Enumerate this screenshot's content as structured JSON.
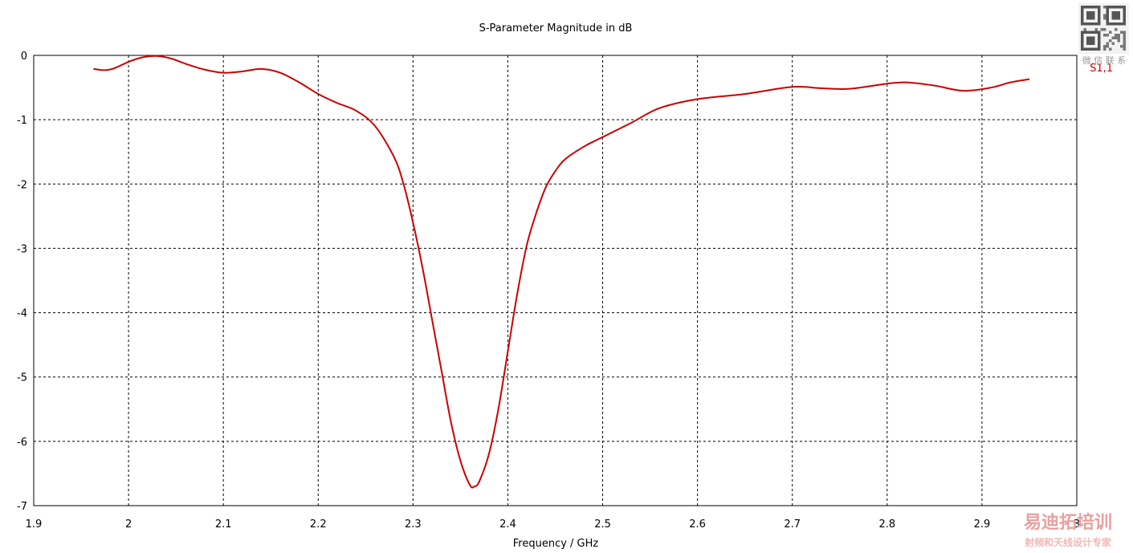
{
  "chart_data": {
    "type": "line",
    "title": "S-Parameter Magnitude in dB",
    "xlabel": "Frequency / GHz",
    "ylabel": "",
    "xlim": [
      1.9,
      3.0
    ],
    "ylim": [
      -7,
      0
    ],
    "xticks": [
      "1.9",
      "2",
      "2.1",
      "2.2",
      "2.3",
      "2.4",
      "2.5",
      "2.6",
      "2.7",
      "2.8",
      "2.9",
      "3"
    ],
    "yticks": [
      "0",
      "-1",
      "-2",
      "-3",
      "-4",
      "-5",
      "-6",
      "-7"
    ],
    "grid": true,
    "legend_position": "top-right",
    "series": [
      {
        "name": "S1,1",
        "color": "#cc0000",
        "x": [
          1.963,
          1.975,
          1.985,
          2.0,
          2.015,
          2.03,
          2.045,
          2.06,
          2.08,
          2.1,
          2.12,
          2.14,
          2.16,
          2.18,
          2.2,
          2.22,
          2.24,
          2.26,
          2.28,
          2.29,
          2.3,
          2.31,
          2.32,
          2.33,
          2.34,
          2.35,
          2.36,
          2.365,
          2.37,
          2.38,
          2.39,
          2.4,
          2.41,
          2.42,
          2.43,
          2.44,
          2.45,
          2.46,
          2.48,
          2.5,
          2.53,
          2.56,
          2.6,
          2.65,
          2.7,
          2.73,
          2.76,
          2.8,
          2.82,
          2.85,
          2.88,
          2.91,
          2.93,
          2.95
        ],
        "values": [
          -0.21,
          -0.23,
          -0.2,
          -0.1,
          -0.03,
          -0.01,
          -0.05,
          -0.13,
          -0.22,
          -0.27,
          -0.25,
          -0.21,
          -0.27,
          -0.42,
          -0.6,
          -0.74,
          -0.86,
          -1.1,
          -1.58,
          -2.0,
          -2.6,
          -3.3,
          -4.1,
          -4.9,
          -5.7,
          -6.3,
          -6.68,
          -6.7,
          -6.62,
          -6.2,
          -5.5,
          -4.6,
          -3.7,
          -2.95,
          -2.45,
          -2.05,
          -1.8,
          -1.62,
          -1.42,
          -1.27,
          -1.05,
          -0.82,
          -0.68,
          -0.6,
          -0.49,
          -0.51,
          -0.52,
          -0.44,
          -0.42,
          -0.47,
          -0.55,
          -0.5,
          -0.42,
          -0.37
        ]
      }
    ]
  },
  "watermark": {
    "qr_text": "微 信 联 系",
    "brand_top": "易迪拓培训",
    "brand_bottom": "射频和天线设计专家",
    "brand_color_a": "#e8a0a0",
    "brand_color_b": "#f0b8b8"
  }
}
